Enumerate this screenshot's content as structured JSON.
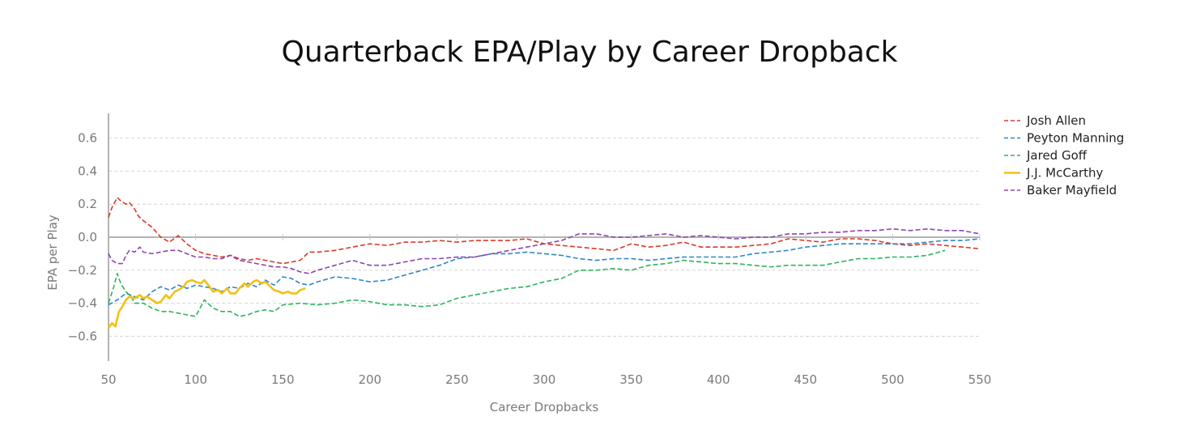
{
  "chart_data": {
    "type": "line",
    "title": "Quarterback EPA/Play by Career Dropback",
    "xlabel": "Career Dropbacks",
    "ylabel": "EPA per Play",
    "xlim": [
      50,
      550
    ],
    "ylim": [
      -0.75,
      0.75
    ],
    "xticks": [
      50,
      100,
      150,
      200,
      250,
      300,
      350,
      400,
      450,
      500,
      550
    ],
    "yticks": [
      -0.6,
      -0.4,
      -0.2,
      0.0,
      0.2,
      0.4,
      0.6
    ],
    "ytick_labels": [
      "−0.6",
      "−0.4",
      "−0.2",
      "0.0",
      "0.2",
      "0.4",
      "0.6"
    ],
    "legend_position": "right",
    "series": [
      {
        "name": "Josh Allen",
        "color": "#d93a2b",
        "style": "dashed",
        "x": [
          50,
          52,
          55,
          57,
          60,
          62,
          65,
          67,
          70,
          75,
          80,
          85,
          90,
          95,
          100,
          105,
          110,
          115,
          120,
          125,
          130,
          135,
          140,
          145,
          150,
          155,
          160,
          165,
          170,
          180,
          190,
          200,
          210,
          220,
          230,
          240,
          250,
          260,
          270,
          280,
          290,
          300,
          310,
          320,
          330,
          340,
          350,
          360,
          370,
          380,
          390,
          400,
          410,
          420,
          430,
          440,
          450,
          460,
          470,
          480,
          490,
          500,
          510,
          520,
          530,
          540,
          550
        ],
        "y": [
          0.12,
          0.18,
          0.24,
          0.22,
          0.2,
          0.21,
          0.17,
          0.13,
          0.1,
          0.06,
          0.0,
          -0.03,
          0.01,
          -0.04,
          -0.08,
          -0.1,
          -0.11,
          -0.12,
          -0.11,
          -0.13,
          -0.14,
          -0.13,
          -0.14,
          -0.15,
          -0.16,
          -0.15,
          -0.14,
          -0.09,
          -0.09,
          -0.08,
          -0.06,
          -0.04,
          -0.05,
          -0.03,
          -0.03,
          -0.02,
          -0.03,
          -0.02,
          -0.02,
          -0.02,
          -0.01,
          -0.04,
          -0.05,
          -0.06,
          -0.07,
          -0.08,
          -0.04,
          -0.06,
          -0.05,
          -0.03,
          -0.06,
          -0.06,
          -0.06,
          -0.05,
          -0.04,
          -0.01,
          -0.02,
          -0.03,
          -0.01,
          -0.01,
          -0.02,
          -0.04,
          -0.05,
          -0.04,
          -0.05,
          -0.06,
          -0.07
        ]
      },
      {
        "name": "Peyton Manning",
        "color": "#2e86c8",
        "style": "dashed",
        "x": [
          50,
          55,
          60,
          65,
          70,
          75,
          80,
          85,
          90,
          95,
          100,
          105,
          110,
          115,
          120,
          125,
          130,
          135,
          140,
          145,
          150,
          155,
          160,
          165,
          170,
          180,
          190,
          200,
          210,
          220,
          230,
          240,
          250,
          260,
          270,
          280,
          290,
          300,
          310,
          320,
          330,
          340,
          350,
          360,
          370,
          380,
          390,
          400,
          410,
          420,
          430,
          440,
          450,
          460,
          470,
          480,
          490,
          500,
          510,
          520,
          530,
          540,
          550
        ],
        "y": [
          -0.41,
          -0.38,
          -0.34,
          -0.36,
          -0.38,
          -0.33,
          -0.3,
          -0.32,
          -0.29,
          -0.31,
          -0.29,
          -0.3,
          -0.31,
          -0.33,
          -0.3,
          -0.31,
          -0.28,
          -0.3,
          -0.26,
          -0.29,
          -0.24,
          -0.25,
          -0.28,
          -0.29,
          -0.27,
          -0.24,
          -0.25,
          -0.27,
          -0.26,
          -0.23,
          -0.2,
          -0.17,
          -0.13,
          -0.12,
          -0.1,
          -0.1,
          -0.09,
          -0.1,
          -0.11,
          -0.13,
          -0.14,
          -0.13,
          -0.13,
          -0.14,
          -0.13,
          -0.12,
          -0.12,
          -0.12,
          -0.12,
          -0.1,
          -0.09,
          -0.08,
          -0.06,
          -0.05,
          -0.04,
          -0.04,
          -0.04,
          -0.04,
          -0.04,
          -0.03,
          -0.02,
          -0.02,
          -0.01
        ]
      },
      {
        "name": "Jared Goff",
        "color": "#2bb55c",
        "style": "dashed",
        "x": [
          50,
          53,
          55,
          57,
          60,
          63,
          65,
          70,
          75,
          80,
          85,
          90,
          95,
          100,
          105,
          110,
          115,
          120,
          125,
          130,
          135,
          140,
          145,
          150,
          160,
          170,
          180,
          190,
          200,
          210,
          220,
          230,
          240,
          250,
          260,
          270,
          280,
          290,
          300,
          310,
          320,
          330,
          340,
          350,
          360,
          370,
          380,
          390,
          400,
          410,
          420,
          430,
          440,
          450,
          460,
          470,
          480,
          490,
          500,
          510,
          520,
          530
        ],
        "y": [
          -0.4,
          -0.3,
          -0.22,
          -0.28,
          -0.33,
          -0.36,
          -0.4,
          -0.4,
          -0.43,
          -0.45,
          -0.45,
          -0.46,
          -0.47,
          -0.48,
          -0.38,
          -0.43,
          -0.45,
          -0.45,
          -0.48,
          -0.47,
          -0.45,
          -0.44,
          -0.45,
          -0.41,
          -0.4,
          -0.41,
          -0.4,
          -0.38,
          -0.39,
          -0.41,
          -0.41,
          -0.42,
          -0.41,
          -0.37,
          -0.35,
          -0.33,
          -0.31,
          -0.3,
          -0.27,
          -0.25,
          -0.2,
          -0.2,
          -0.19,
          -0.2,
          -0.17,
          -0.16,
          -0.14,
          -0.15,
          -0.16,
          -0.16,
          -0.17,
          -0.18,
          -0.17,
          -0.17,
          -0.17,
          -0.15,
          -0.13,
          -0.13,
          -0.12,
          -0.12,
          -0.11,
          -0.08
        ]
      },
      {
        "name": "J.J. McCarthy",
        "color": "#f2c014",
        "style": "solid",
        "x": [
          50,
          52,
          54,
          56,
          58,
          60,
          62,
          65,
          68,
          70,
          72,
          75,
          78,
          80,
          83,
          85,
          88,
          90,
          93,
          95,
          98,
          100,
          103,
          105,
          108,
          110,
          113,
          115,
          118,
          120,
          123,
          125,
          128,
          130,
          133,
          135,
          138,
          140,
          143,
          145,
          148,
          150,
          153,
          155,
          158,
          160,
          163
        ],
        "y": [
          -0.55,
          -0.52,
          -0.54,
          -0.45,
          -0.42,
          -0.38,
          -0.36,
          -0.37,
          -0.35,
          -0.37,
          -0.36,
          -0.38,
          -0.4,
          -0.39,
          -0.35,
          -0.37,
          -0.33,
          -0.32,
          -0.3,
          -0.27,
          -0.26,
          -0.27,
          -0.28,
          -0.26,
          -0.3,
          -0.33,
          -0.32,
          -0.34,
          -0.31,
          -0.34,
          -0.34,
          -0.31,
          -0.28,
          -0.3,
          -0.27,
          -0.26,
          -0.28,
          -0.27,
          -0.3,
          -0.32,
          -0.33,
          -0.34,
          -0.33,
          -0.34,
          -0.34,
          -0.32,
          -0.31
        ]
      },
      {
        "name": "Baker Mayfield",
        "color": "#8e44ad",
        "style": "dashed",
        "x": [
          50,
          52,
          55,
          58,
          60,
          62,
          65,
          68,
          70,
          75,
          80,
          85,
          90,
          95,
          100,
          105,
          110,
          115,
          120,
          125,
          130,
          135,
          140,
          145,
          150,
          155,
          160,
          165,
          170,
          180,
          190,
          200,
          210,
          220,
          230,
          240,
          250,
          260,
          270,
          280,
          290,
          300,
          310,
          320,
          330,
          340,
          350,
          360,
          370,
          380,
          390,
          400,
          410,
          420,
          430,
          440,
          450,
          460,
          470,
          480,
          490,
          500,
          510,
          520,
          530,
          540,
          550
        ],
        "y": [
          -0.1,
          -0.14,
          -0.16,
          -0.16,
          -0.11,
          -0.08,
          -0.09,
          -0.06,
          -0.09,
          -0.1,
          -0.09,
          -0.08,
          -0.08,
          -0.1,
          -0.12,
          -0.12,
          -0.13,
          -0.13,
          -0.11,
          -0.14,
          -0.15,
          -0.16,
          -0.17,
          -0.18,
          -0.18,
          -0.19,
          -0.21,
          -0.22,
          -0.2,
          -0.17,
          -0.14,
          -0.17,
          -0.17,
          -0.15,
          -0.13,
          -0.13,
          -0.12,
          -0.12,
          -0.1,
          -0.08,
          -0.06,
          -0.04,
          -0.02,
          0.02,
          0.02,
          0.0,
          0.0,
          0.01,
          0.02,
          0.0,
          0.01,
          0.0,
          -0.01,
          0.0,
          0.0,
          0.02,
          0.02,
          0.03,
          0.03,
          0.04,
          0.04,
          0.05,
          0.04,
          0.05,
          0.04,
          0.04,
          0.02
        ]
      }
    ]
  }
}
